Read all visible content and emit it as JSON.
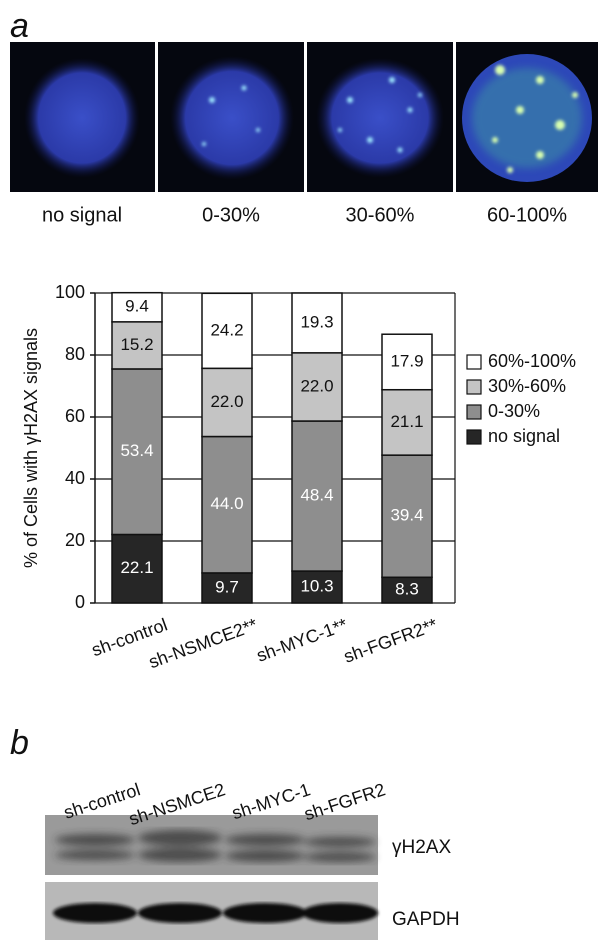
{
  "panel_a": {
    "label": "a",
    "image_labels": [
      "no signal",
      "0-30%",
      "30-60%",
      "60-100%"
    ]
  },
  "chart_data": {
    "type": "bar",
    "stacked": true,
    "ylabel": "% of Cells with γH2AX signals",
    "categories": [
      "sh-control",
      "sh-NSMCE2**",
      "sh-MYC-1**",
      "sh-FGFR2**"
    ],
    "series": [
      {
        "name": "no signal",
        "color": "#262626",
        "label_color": "#ffffff",
        "values": [
          22.1,
          9.7,
          10.3,
          8.3
        ],
        "value_labels": [
          "22.1",
          "9.7",
          "10.3",
          "8.3"
        ]
      },
      {
        "name": "0-30%",
        "color": "#8e8e8e",
        "label_color": "#ffffff",
        "values": [
          53.4,
          44.0,
          48.4,
          39.4
        ],
        "value_labels": [
          "53.4",
          "44.0",
          "48.4",
          "39.4"
        ]
      },
      {
        "name": "30%-60%",
        "color": "#c4c4c4",
        "label_color": "#111111",
        "values": [
          15.2,
          22.0,
          22.0,
          21.1
        ],
        "value_labels": [
          "15.2",
          "22.0",
          "22.0",
          "21.1"
        ]
      },
      {
        "name": "60%-100%",
        "color": "#ffffff",
        "label_color": "#111111",
        "values": [
          9.4,
          24.2,
          19.3,
          17.9
        ],
        "value_labels": [
          "9.4",
          "24.2",
          "19.3",
          "17.9"
        ]
      }
    ],
    "ylim": [
      0,
      100
    ],
    "yticks": [
      0,
      20,
      40,
      60,
      80,
      100
    ],
    "grid": true,
    "legend": "right"
  },
  "panel_b": {
    "label": "b",
    "lanes": [
      "sh-control",
      "sh-NSMCE2",
      "sh-MYC-1",
      "sh-FGFR2"
    ],
    "bands": [
      "γH2AX",
      "GAPDH"
    ]
  }
}
